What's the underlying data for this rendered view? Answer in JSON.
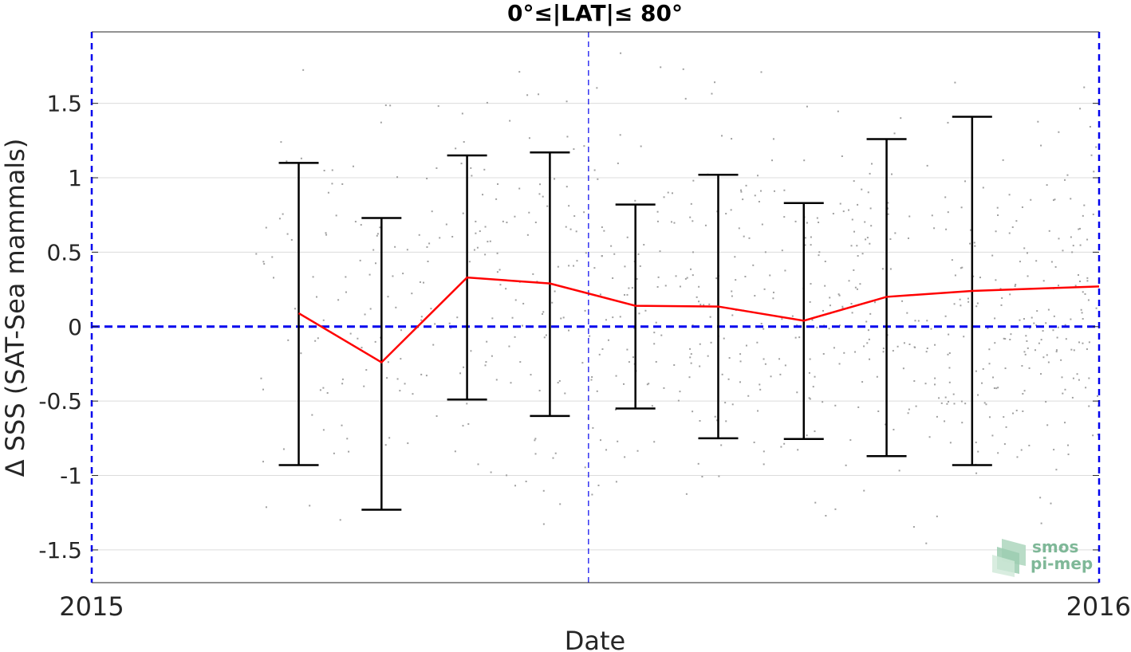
{
  "chart_data": {
    "type": "line",
    "title": "0°≤|LAT|≤ 80°",
    "xlabel": "Date",
    "ylabel": "Δ SSS (SAT-Sea mammals)",
    "xlim": [
      "2015-01-01",
      "2016-01-01"
    ],
    "ylim": [
      -1.72,
      1.98
    ],
    "x_tick_labels": [
      "2015",
      "2016"
    ],
    "y_ticks": [
      -1.5,
      -1,
      -0.5,
      0,
      0.5,
      1,
      1.5
    ],
    "y_tick_labels": [
      "-1.5",
      "-1",
      "-0.5",
      "0",
      "0.5",
      "1",
      "1.5"
    ],
    "grid": "horizontal",
    "zero_line": 0,
    "vertical_markers": [
      "2015-01-01",
      "2015-06-30",
      "2016-01-01"
    ],
    "mean_series": {
      "x": [
        "2015-03-17",
        "2015-04-16",
        "2015-05-17",
        "2015-06-16",
        "2015-07-17",
        "2015-08-16",
        "2015-09-16",
        "2015-10-16",
        "2015-11-16",
        "2016-01-01"
      ],
      "y": [
        0.09,
        -0.24,
        0.33,
        0.29,
        0.14,
        0.135,
        0.04,
        0.2,
        0.24,
        0.27
      ]
    },
    "error_bars": {
      "x": [
        "2015-03-17",
        "2015-04-16",
        "2015-05-17",
        "2015-06-16",
        "2015-07-17",
        "2015-08-16",
        "2015-09-16",
        "2015-10-16",
        "2015-11-16"
      ],
      "lower": [
        -0.93,
        -1.23,
        -0.49,
        -0.6,
        -0.55,
        -0.75,
        -0.755,
        -0.87,
        -0.93
      ],
      "upper": [
        1.1,
        0.73,
        1.15,
        1.17,
        0.82,
        1.02,
        0.83,
        1.26,
        1.41
      ]
    },
    "scatter": {
      "x_range": [
        "2015-03-01",
        "2016-01-01"
      ],
      "y_range": [
        -1.72,
        1.98
      ],
      "count": 800
    },
    "colors": {
      "mean_line": "#ff0000",
      "error_bars": "#000000",
      "zero_line": "#0000ee",
      "vertical_markers": "#0000ee",
      "scatter": "#a0a0a0",
      "grid": "#dcdcdc"
    }
  },
  "logo": {
    "line1": "smos",
    "line2": "pi-mep"
  }
}
